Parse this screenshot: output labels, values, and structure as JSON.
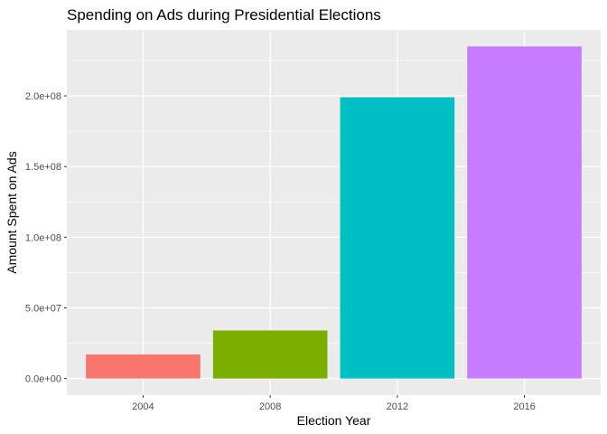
{
  "chart_data": {
    "type": "bar",
    "title": "Spending on Ads during Presidential Elections",
    "xlabel": "Election Year",
    "ylabel": "Amount Spent on Ads",
    "categories": [
      "2004",
      "2008",
      "2012",
      "2016"
    ],
    "values": [
      17000000,
      34000000,
      199000000,
      235000000
    ],
    "colors": [
      "#F8766D",
      "#7CAE00",
      "#00BFC4",
      "#C77CFF"
    ],
    "ylim": [
      -11750000,
      246750000
    ],
    "yticks": [
      0,
      50000000,
      100000000,
      150000000,
      200000000
    ],
    "ytick_labels": [
      "0.0e+00",
      "5.0e+07",
      "1.0e+08",
      "1.5e+08",
      "2.0e+08"
    ],
    "grid": true,
    "legend": "none"
  }
}
